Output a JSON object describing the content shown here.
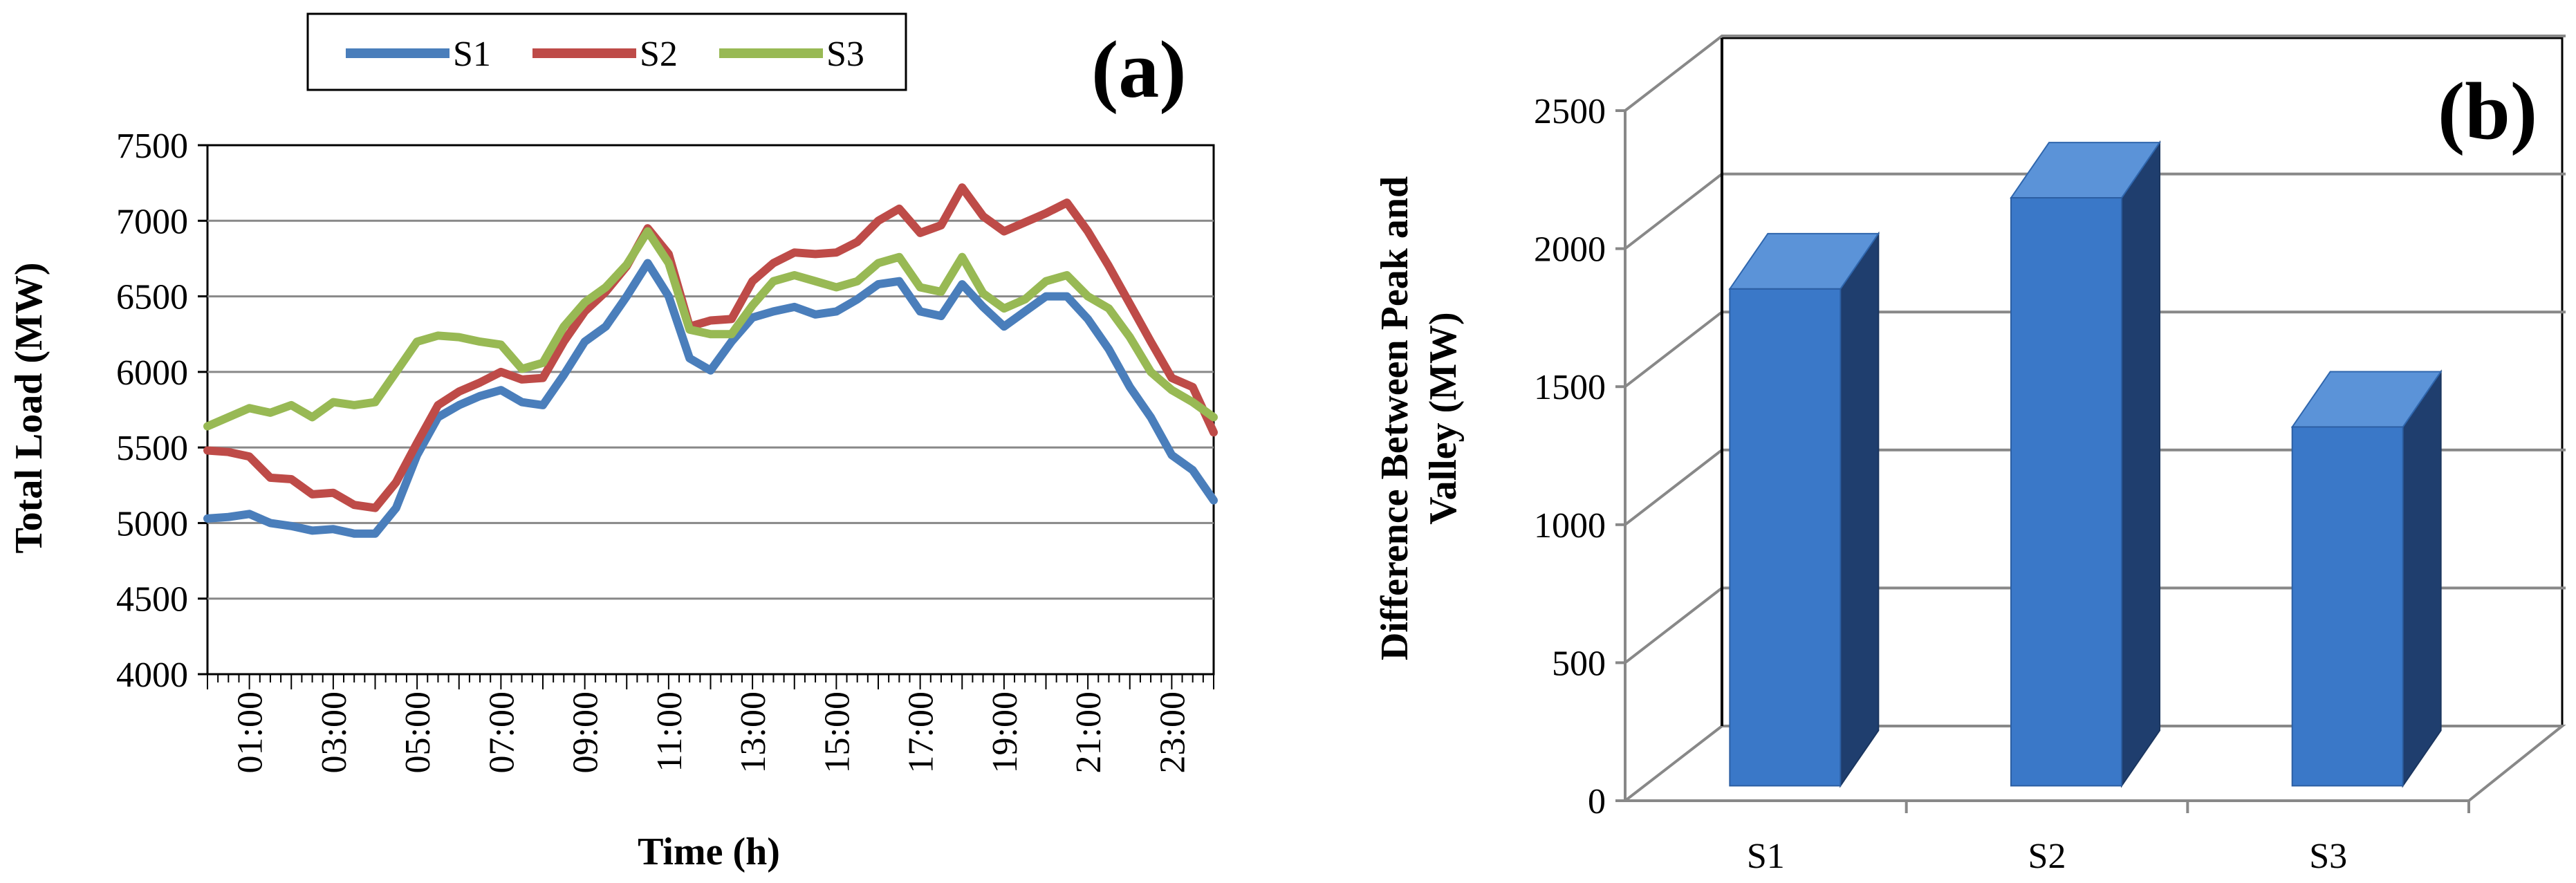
{
  "chart_data": [
    {
      "panel_label": "(a)",
      "type": "line",
      "xlabel": "Time (h)",
      "ylabel": "Total Load (MW)",
      "ylim": [
        4000,
        7500
      ],
      "yticks": [
        "4000",
        "4500",
        "5000",
        "5500",
        "6000",
        "6500",
        "7000",
        "7500"
      ],
      "x_tick_labels": [
        "01:00",
        "03:00",
        "05:00",
        "07:00",
        "09:00",
        "11:00",
        "13:00",
        "15:00",
        "17:00",
        "19:00",
        "21:00",
        "23:00"
      ],
      "x_tick_hours": [
        1,
        3,
        5,
        7,
        9,
        11,
        13,
        15,
        17,
        19,
        21,
        23
      ],
      "x_range_hours": [
        0,
        24
      ],
      "legend": [
        "S1",
        "S2",
        "S3"
      ],
      "series": [
        {
          "name": "S1",
          "color": "#4a7ebb",
          "x": [
            0,
            0.5,
            1,
            1.5,
            2,
            2.5,
            3,
            3.5,
            4,
            4.5,
            5,
            5.5,
            6,
            6.5,
            7,
            7.5,
            8,
            8.5,
            9,
            9.5,
            10,
            10.5,
            11,
            11.5,
            12,
            12.5,
            13,
            13.5,
            14,
            14.5,
            15,
            15.5,
            16,
            16.5,
            17,
            17.5,
            18,
            18.5,
            19,
            19.5,
            20,
            20.5,
            21,
            21.5,
            22,
            22.5,
            23,
            23.5,
            24
          ],
          "values": [
            5030,
            5040,
            5060,
            5000,
            4980,
            4950,
            4960,
            4930,
            4930,
            5100,
            5450,
            5700,
            5780,
            5840,
            5880,
            5800,
            5780,
            5980,
            6200,
            6300,
            6500,
            6720,
            6500,
            6090,
            6010,
            6200,
            6360,
            6400,
            6430,
            6380,
            6400,
            6480,
            6580,
            6600,
            6400,
            6370,
            6580,
            6430,
            6300,
            6400,
            6500,
            6500,
            6350,
            6150,
            5900,
            5700,
            5450,
            5350,
            5150
          ]
        },
        {
          "name": "S2",
          "color": "#be4b48",
          "x": [
            0,
            0.5,
            1,
            1.5,
            2,
            2.5,
            3,
            3.5,
            4,
            4.5,
            5,
            5.5,
            6,
            6.5,
            7,
            7.5,
            8,
            8.5,
            9,
            9.5,
            10,
            10.5,
            11,
            11.5,
            12,
            12.5,
            13,
            13.5,
            14,
            14.5,
            15,
            15.5,
            16,
            16.5,
            17,
            17.5,
            18,
            18.5,
            19,
            19.5,
            20,
            20.5,
            21,
            21.5,
            22,
            22.5,
            23,
            23.5,
            24
          ],
          "values": [
            5480,
            5470,
            5440,
            5300,
            5290,
            5190,
            5200,
            5120,
            5100,
            5270,
            5530,
            5780,
            5870,
            5930,
            6000,
            5950,
            5960,
            6200,
            6400,
            6530,
            6700,
            6950,
            6780,
            6300,
            6340,
            6350,
            6600,
            6720,
            6790,
            6780,
            6790,
            6860,
            7000,
            7080,
            6920,
            6970,
            7220,
            7030,
            6930,
            6990,
            7050,
            7120,
            6930,
            6700,
            6450,
            6200,
            5960,
            5900,
            5600
          ]
        },
        {
          "name": "S3",
          "color": "#98b954",
          "x": [
            0,
            0.5,
            1,
            1.5,
            2,
            2.5,
            3,
            3.5,
            4,
            4.5,
            5,
            5.5,
            6,
            6.5,
            7,
            7.5,
            8,
            8.5,
            9,
            9.5,
            10,
            10.5,
            11,
            11.5,
            12,
            12.5,
            13,
            13.5,
            14,
            14.5,
            15,
            15.5,
            16,
            16.5,
            17,
            17.5,
            18,
            18.5,
            19,
            19.5,
            20,
            20.5,
            21,
            21.5,
            22,
            22.5,
            23,
            23.5,
            24
          ],
          "values": [
            5640,
            5700,
            5760,
            5730,
            5780,
            5700,
            5800,
            5780,
            5800,
            6000,
            6200,
            6240,
            6230,
            6200,
            6180,
            6020,
            6060,
            6300,
            6460,
            6560,
            6710,
            6930,
            6720,
            6280,
            6250,
            6250,
            6440,
            6600,
            6640,
            6600,
            6560,
            6600,
            6720,
            6760,
            6560,
            6530,
            6760,
            6520,
            6420,
            6480,
            6600,
            6640,
            6500,
            6420,
            6230,
            6000,
            5880,
            5800,
            5700
          ]
        }
      ]
    },
    {
      "panel_label": "(b)",
      "type": "bar",
      "ylabel": "Difference Between Peak and Valley (MW)",
      "ylabel_lines": [
        "Difference Between Peak and",
        "Valley (MW)"
      ],
      "ylim": [
        0,
        2500
      ],
      "yticks": [
        "0",
        "500",
        "1000",
        "1500",
        "2000",
        "2500"
      ],
      "categories": [
        "S1",
        "S2",
        "S3"
      ],
      "values": [
        1800,
        2130,
        1300
      ],
      "bar_color": "#3a78c8",
      "grid": true
    }
  ]
}
